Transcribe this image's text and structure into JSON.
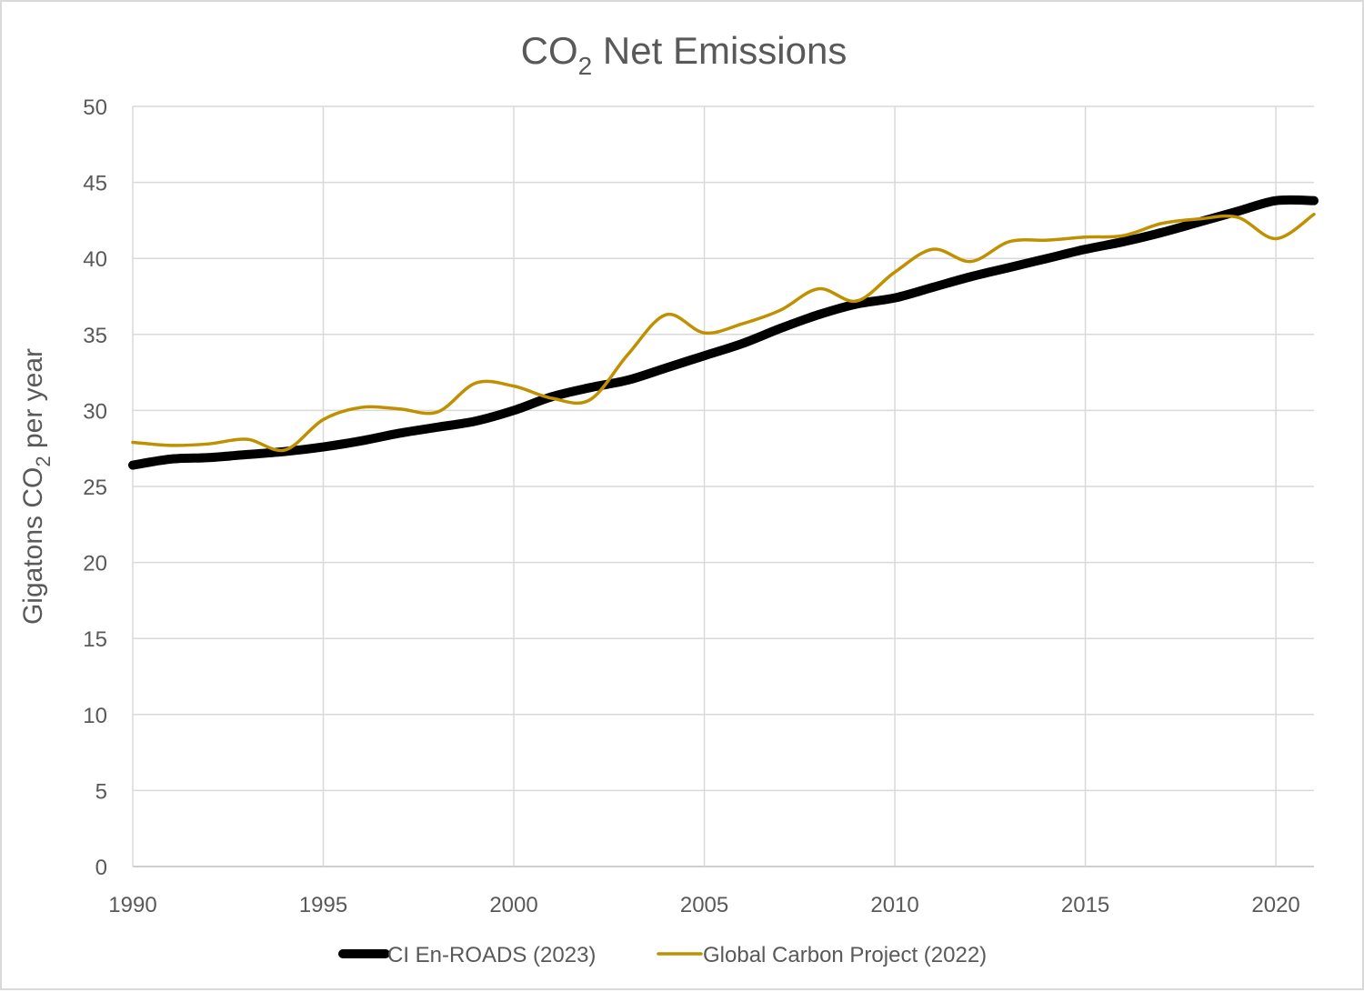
{
  "chart_data": {
    "type": "line",
    "title": {
      "main": "CO",
      "sub": "2",
      "rest": " Net Emissions"
    },
    "ylabel": {
      "pre": "Gigatons CO",
      "sub": "2",
      "post": " per year"
    },
    "xlabel": "",
    "xlim": [
      1990,
      2021
    ],
    "ylim": [
      0,
      50
    ],
    "x_ticks": [
      1990,
      1995,
      2000,
      2005,
      2010,
      2015,
      2020
    ],
    "y_ticks": [
      0,
      5,
      10,
      15,
      20,
      25,
      30,
      35,
      40,
      45,
      50
    ],
    "grid": true,
    "legend_position": "bottom",
    "x": [
      1990,
      1991,
      1992,
      1993,
      1994,
      1995,
      1996,
      1997,
      1998,
      1999,
      2000,
      2001,
      2002,
      2003,
      2004,
      2005,
      2006,
      2007,
      2008,
      2009,
      2010,
      2011,
      2012,
      2013,
      2014,
      2015,
      2016,
      2017,
      2018,
      2019,
      2020,
      2021
    ],
    "series": [
      {
        "name": "CI En-ROADS (2023)",
        "color": "#000000",
        "width": 10,
        "values": [
          26.4,
          26.8,
          26.9,
          27.1,
          27.3,
          27.6,
          28.0,
          28.5,
          28.9,
          29.3,
          30.0,
          30.9,
          31.5,
          32.0,
          32.8,
          33.6,
          34.4,
          35.4,
          36.3,
          37.0,
          37.4,
          38.1,
          38.8,
          39.4,
          40.0,
          40.6,
          41.1,
          41.7,
          42.4,
          43.1,
          43.8,
          43.8
        ]
      },
      {
        "name": "Global Carbon Project (2022)",
        "color": "#bf9000",
        "width": 3.5,
        "values": [
          27.9,
          27.7,
          27.8,
          28.1,
          27.4,
          29.4,
          30.2,
          30.1,
          29.9,
          31.8,
          31.6,
          30.8,
          30.7,
          33.7,
          36.3,
          35.1,
          35.7,
          36.6,
          38.0,
          37.2,
          39.1,
          40.6,
          39.8,
          41.1,
          41.2,
          41.4,
          41.5,
          42.3,
          42.6,
          42.7,
          41.3,
          42.9
        ]
      }
    ]
  }
}
